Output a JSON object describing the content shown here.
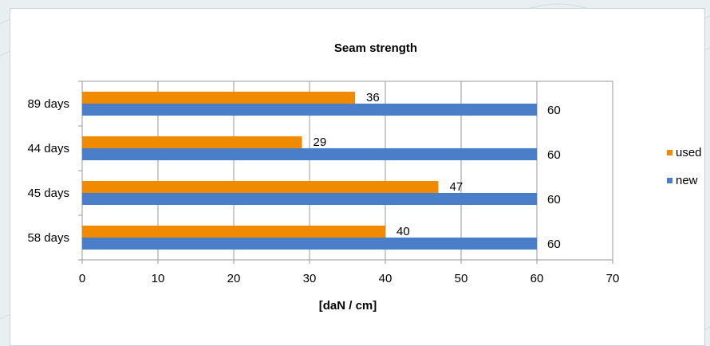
{
  "chart_data": {
    "type": "bar",
    "orientation": "horizontal",
    "title": "Seam strength",
    "xlabel": "[daN / cm]",
    "ylabel": "",
    "xlim": [
      0,
      70
    ],
    "xticks": [
      0,
      10,
      20,
      30,
      40,
      50,
      60,
      70
    ],
    "grid": true,
    "legend_position": "right",
    "categories": [
      "89 days",
      "44 days",
      "45 days",
      "58 days"
    ],
    "series": [
      {
        "name": "used",
        "color": "#f08a00",
        "values": [
          36,
          29,
          47,
          40
        ]
      },
      {
        "name": "new",
        "color": "#4a7ec9",
        "values": [
          60,
          60,
          60,
          60
        ]
      }
    ]
  }
}
